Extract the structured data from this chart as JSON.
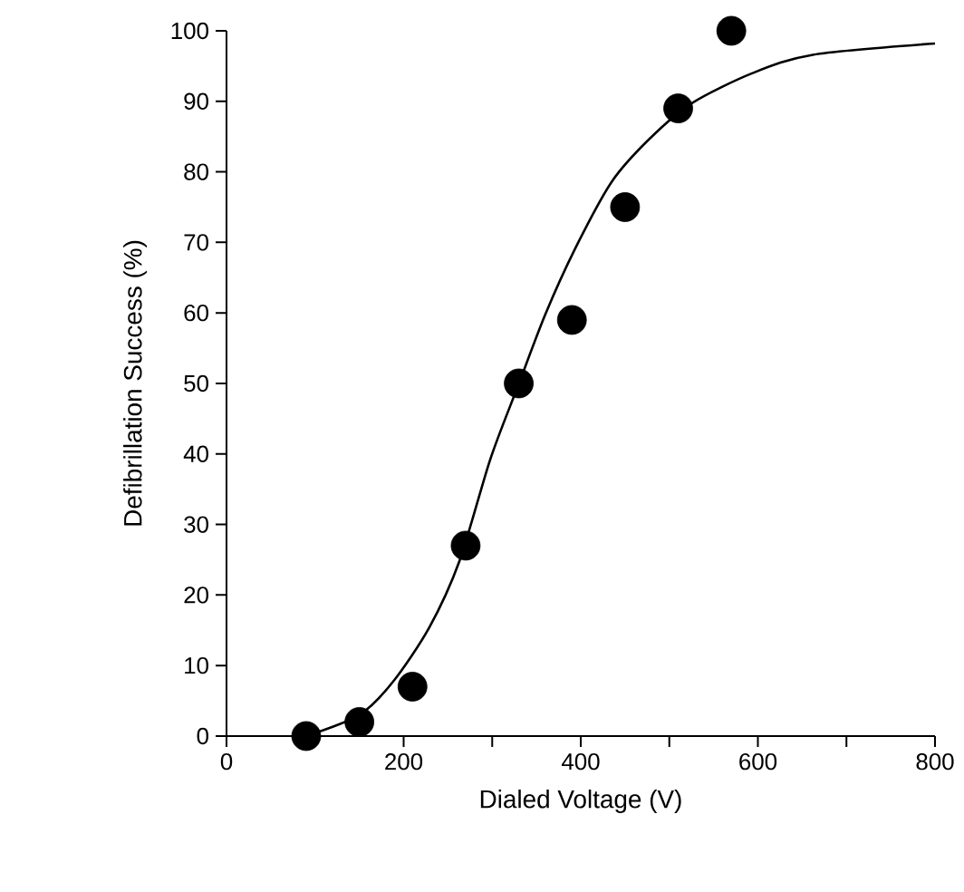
{
  "chart_data": {
    "type": "scatter",
    "xlabel": "Dialed Voltage (V)",
    "ylabel": "Defibrillation Success (%)",
    "xlim": [
      0,
      800
    ],
    "ylim": [
      0,
      100
    ],
    "xticks": [
      0,
      200,
      400,
      600,
      800
    ],
    "yticks": [
      0,
      10,
      20,
      30,
      40,
      50,
      60,
      70,
      80,
      90,
      100
    ],
    "series": [
      {
        "color": "#000000",
        "marker": "circle",
        "x": [
          90,
          150,
          210,
          270,
          330,
          390,
          450,
          510,
          570
        ],
        "values": [
          0,
          2,
          7,
          27,
          50,
          59,
          75,
          89,
          100
        ]
      },
      {
        "type": "line",
        "color": "#000000",
        "marker": "none",
        "line_style": "solid",
        "x": [
          90,
          150,
          188,
          229,
          263,
          298,
          329,
          360,
          394,
          435,
          477,
          525,
          594,
          662,
          800
        ],
        "values": [
          0,
          3,
          7.7,
          15.4,
          24.8,
          39.3,
          49.6,
          59.8,
          69.2,
          78.6,
          84.6,
          89.7,
          94,
          96.6,
          98.2
        ]
      }
    ]
  }
}
